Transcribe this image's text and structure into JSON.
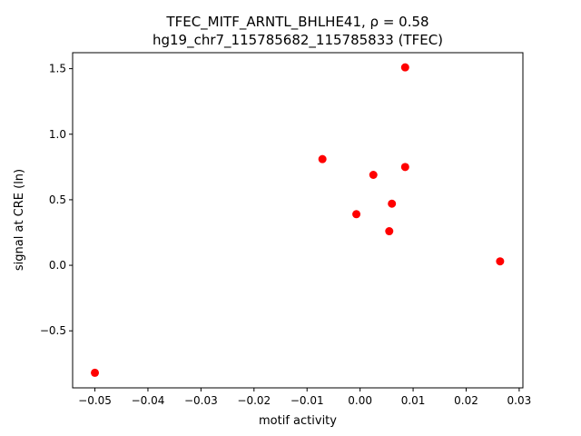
{
  "chart_data": {
    "type": "scatter",
    "title_line1": "TFEC_MITF_ARNTL_BHLHE41, ρ = 0.58",
    "title_line2": "hg19_chr7_115785682_115785833 (TFEC)",
    "xlabel": "motif activity",
    "ylabel": "signal at CRE (ln)",
    "xlim": [
      -0.0542,
      0.0307
    ],
    "ylim": [
      -0.935,
      1.622
    ],
    "xticks": [
      -0.05,
      -0.04,
      -0.03,
      -0.02,
      -0.01,
      0.0,
      0.01,
      0.02,
      0.03
    ],
    "xtick_labels": [
      "−0.05",
      "−0.04",
      "−0.03",
      "−0.02",
      "−0.01",
      "0.00",
      "0.01",
      "0.02",
      "0.03"
    ],
    "yticks": [
      -0.5,
      0.0,
      0.5,
      1.0,
      1.5
    ],
    "ytick_labels": [
      "−0.5",
      "0.0",
      "0.5",
      "1.0",
      "1.5"
    ],
    "marker_color": "#ff0000",
    "points": [
      {
        "x": -0.05,
        "y": -0.82
      },
      {
        "x": -0.0071,
        "y": 0.81
      },
      {
        "x": -0.0007,
        "y": 0.39
      },
      {
        "x": 0.0025,
        "y": 0.69
      },
      {
        "x": 0.0055,
        "y": 0.26
      },
      {
        "x": 0.006,
        "y": 0.47
      },
      {
        "x": 0.0085,
        "y": 1.51
      },
      {
        "x": 0.0085,
        "y": 0.75
      },
      {
        "x": 0.0264,
        "y": 0.03
      }
    ]
  }
}
